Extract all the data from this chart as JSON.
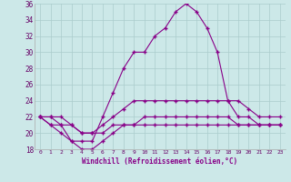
{
  "xlabel": "Windchill (Refroidissement éolien,°C)",
  "xlim": [
    -0.5,
    23.5
  ],
  "ylim": [
    18,
    36
  ],
  "yticks": [
    18,
    20,
    22,
    24,
    26,
    28,
    30,
    32,
    34,
    36
  ],
  "xticks": [
    0,
    1,
    2,
    3,
    4,
    5,
    6,
    7,
    8,
    9,
    10,
    11,
    12,
    13,
    14,
    15,
    16,
    17,
    18,
    19,
    20,
    21,
    22,
    23
  ],
  "background_color": "#cce8e8",
  "line_color": "#880088",
  "grid_color": "#aacccc",
  "lines": [
    {
      "x": [
        0,
        1,
        2,
        3,
        4,
        5,
        6,
        7,
        8,
        9,
        10,
        11,
        12,
        13,
        14,
        15,
        16,
        17,
        18,
        19,
        20,
        21,
        22,
        23
      ],
      "y": [
        22,
        21,
        21,
        19,
        19,
        19,
        22,
        25,
        28,
        30,
        30,
        32,
        33,
        35,
        36,
        35,
        33,
        30,
        24,
        22,
        22,
        21,
        21,
        21
      ]
    },
    {
      "x": [
        0,
        1,
        2,
        3,
        4,
        5,
        6,
        7,
        8,
        9,
        10,
        11,
        12,
        13,
        14,
        15,
        16,
        17,
        18,
        19,
        20,
        21,
        22,
        23
      ],
      "y": [
        22,
        22,
        22,
        21,
        20,
        20,
        21,
        22,
        23,
        24,
        24,
        24,
        24,
        24,
        24,
        24,
        24,
        24,
        24,
        24,
        23,
        22,
        22,
        22
      ]
    },
    {
      "x": [
        0,
        1,
        2,
        3,
        4,
        5,
        6,
        7,
        8,
        9,
        10,
        11,
        12,
        13,
        14,
        15,
        16,
        17,
        18,
        19,
        20,
        21,
        22,
        23
      ],
      "y": [
        22,
        22,
        21,
        21,
        20,
        20,
        20,
        21,
        21,
        21,
        22,
        22,
        22,
        22,
        22,
        22,
        22,
        22,
        22,
        21,
        21,
        21,
        21,
        21
      ]
    },
    {
      "x": [
        0,
        1,
        2,
        3,
        4,
        5,
        6,
        7,
        8,
        9,
        10,
        11,
        12,
        13,
        14,
        15,
        16,
        17,
        18,
        19,
        20,
        21,
        22,
        23
      ],
      "y": [
        22,
        21,
        20,
        19,
        18,
        18,
        19,
        20,
        21,
        21,
        21,
        21,
        21,
        21,
        21,
        21,
        21,
        21,
        21,
        21,
        21,
        21,
        21,
        21
      ]
    }
  ]
}
